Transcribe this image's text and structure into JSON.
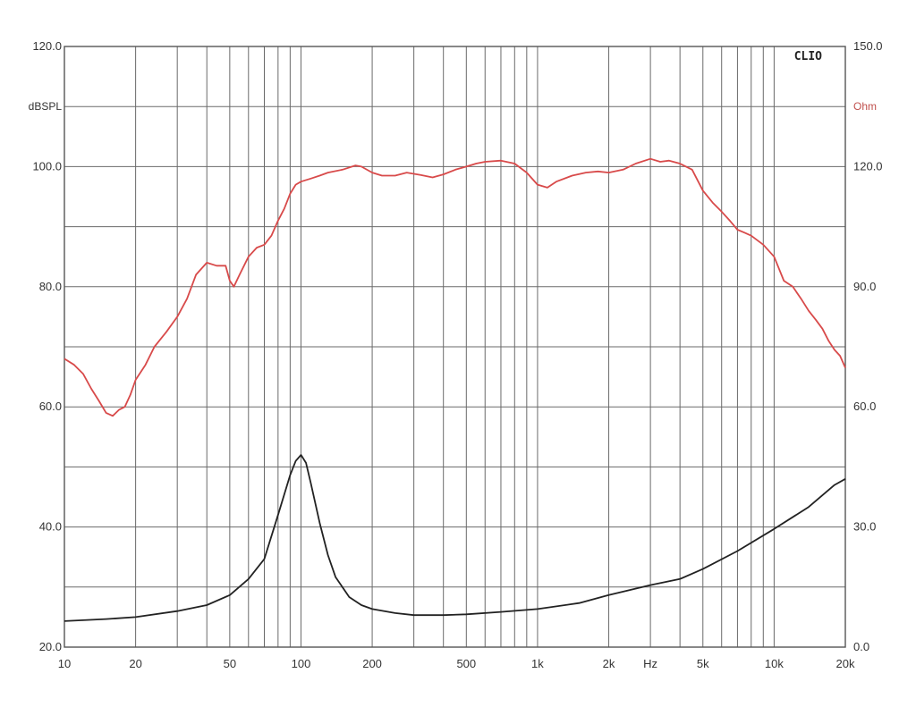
{
  "chart_data": {
    "type": "line",
    "brand": "CLIO",
    "x_scale": "log",
    "xlim": [
      10,
      20000
    ],
    "x_tick_labels": [
      {
        "value": 10,
        "label": "10"
      },
      {
        "value": 20,
        "label": "20"
      },
      {
        "value": 50,
        "label": "50"
      },
      {
        "value": 100,
        "label": "100"
      },
      {
        "value": 200,
        "label": "200"
      },
      {
        "value": 500,
        "label": "500"
      },
      {
        "value": 1000,
        "label": "1k"
      },
      {
        "value": 2000,
        "label": "2k"
      },
      {
        "value": 5000,
        "label": "5k"
      },
      {
        "value": 10000,
        "label": "10k"
      },
      {
        "value": 20000,
        "label": "20k"
      }
    ],
    "x_unit_label": "Hz",
    "left_axis": {
      "unit": "dBSPL",
      "ylim": [
        20,
        120
      ],
      "tick_labels": [
        {
          "value": 20,
          "label": "20.0"
        },
        {
          "value": 40,
          "label": "40.0"
        },
        {
          "value": 60,
          "label": "60.0"
        },
        {
          "value": 80,
          "label": "80.0"
        },
        {
          "value": 100,
          "label": "100.0"
        },
        {
          "value": 120,
          "label": "120.0"
        }
      ]
    },
    "right_axis": {
      "unit": "Ohm",
      "ylim": [
        0,
        150
      ],
      "tick_labels": [
        {
          "value": 0,
          "label": "0.0"
        },
        {
          "value": 30,
          "label": "30.0"
        },
        {
          "value": 60,
          "label": "60.0"
        },
        {
          "value": 90,
          "label": "90.0"
        },
        {
          "value": 120,
          "label": "120.0"
        },
        {
          "value": 150,
          "label": "150.0"
        }
      ]
    },
    "grid": true,
    "series": [
      {
        "axis": "left",
        "color": "#d84a4a",
        "points": [
          [
            10,
            68
          ],
          [
            11,
            67
          ],
          [
            12,
            65.5
          ],
          [
            13,
            63
          ],
          [
            14,
            61
          ],
          [
            15,
            59
          ],
          [
            16,
            58.5
          ],
          [
            17,
            59.5
          ],
          [
            18,
            60
          ],
          [
            19,
            62
          ],
          [
            20,
            64.5
          ],
          [
            22,
            67
          ],
          [
            24,
            70
          ],
          [
            27,
            72.5
          ],
          [
            30,
            75
          ],
          [
            33,
            78
          ],
          [
            36,
            82
          ],
          [
            40,
            84
          ],
          [
            44,
            83.5
          ],
          [
            48,
            83.5
          ],
          [
            50,
            81
          ],
          [
            52,
            80
          ],
          [
            55,
            82
          ],
          [
            60,
            85
          ],
          [
            65,
            86.5
          ],
          [
            70,
            87
          ],
          [
            75,
            88.5
          ],
          [
            80,
            91
          ],
          [
            85,
            93
          ],
          [
            90,
            95.5
          ],
          [
            95,
            97
          ],
          [
            100,
            97.5
          ],
          [
            110,
            98
          ],
          [
            120,
            98.5
          ],
          [
            130,
            99
          ],
          [
            150,
            99.5
          ],
          [
            170,
            100.2
          ],
          [
            180,
            100
          ],
          [
            200,
            99
          ],
          [
            220,
            98.5
          ],
          [
            250,
            98.5
          ],
          [
            280,
            99
          ],
          [
            320,
            98.6
          ],
          [
            360,
            98.2
          ],
          [
            400,
            98.7
          ],
          [
            450,
            99.5
          ],
          [
            500,
            100
          ],
          [
            550,
            100.5
          ],
          [
            600,
            100.8
          ],
          [
            700,
            101
          ],
          [
            800,
            100.5
          ],
          [
            900,
            99
          ],
          [
            1000,
            97
          ],
          [
            1100,
            96.5
          ],
          [
            1200,
            97.5
          ],
          [
            1400,
            98.5
          ],
          [
            1600,
            99
          ],
          [
            1800,
            99.2
          ],
          [
            2000,
            99
          ],
          [
            2300,
            99.5
          ],
          [
            2600,
            100.5
          ],
          [
            3000,
            101.3
          ],
          [
            3300,
            100.8
          ],
          [
            3600,
            101
          ],
          [
            4000,
            100.5
          ],
          [
            4500,
            99.5
          ],
          [
            5000,
            96
          ],
          [
            5500,
            94
          ],
          [
            6000,
            92.5
          ],
          [
            6500,
            91
          ],
          [
            7000,
            89.5
          ],
          [
            7500,
            89
          ],
          [
            8000,
            88.5
          ],
          [
            9000,
            87
          ],
          [
            10000,
            85
          ],
          [
            11000,
            81
          ],
          [
            12000,
            80
          ],
          [
            13000,
            78
          ],
          [
            14000,
            76
          ],
          [
            15000,
            74.5
          ],
          [
            16000,
            73
          ],
          [
            17000,
            71
          ],
          [
            18000,
            69.5
          ],
          [
            19000,
            68.5
          ],
          [
            20000,
            66.5
          ]
        ]
      },
      {
        "axis": "right",
        "color": "#222222",
        "points": [
          [
            10,
            6.5
          ],
          [
            15,
            7
          ],
          [
            20,
            7.5
          ],
          [
            30,
            9
          ],
          [
            40,
            10.5
          ],
          [
            50,
            13
          ],
          [
            60,
            17
          ],
          [
            70,
            22
          ],
          [
            80,
            33
          ],
          [
            90,
            43
          ],
          [
            95,
            46.5
          ],
          [
            100,
            48
          ],
          [
            105,
            46
          ],
          [
            110,
            41
          ],
          [
            120,
            31
          ],
          [
            130,
            23
          ],
          [
            140,
            17.5
          ],
          [
            160,
            12.5
          ],
          [
            180,
            10.5
          ],
          [
            200,
            9.5
          ],
          [
            250,
            8.5
          ],
          [
            300,
            8
          ],
          [
            400,
            8
          ],
          [
            500,
            8.2
          ],
          [
            700,
            8.8
          ],
          [
            1000,
            9.5
          ],
          [
            1500,
            11
          ],
          [
            2000,
            13
          ],
          [
            3000,
            15.5
          ],
          [
            4000,
            17
          ],
          [
            5000,
            19.5
          ],
          [
            7000,
            24
          ],
          [
            10000,
            29.5
          ],
          [
            14000,
            35
          ],
          [
            18000,
            40.5
          ],
          [
            20000,
            42
          ]
        ]
      }
    ]
  }
}
